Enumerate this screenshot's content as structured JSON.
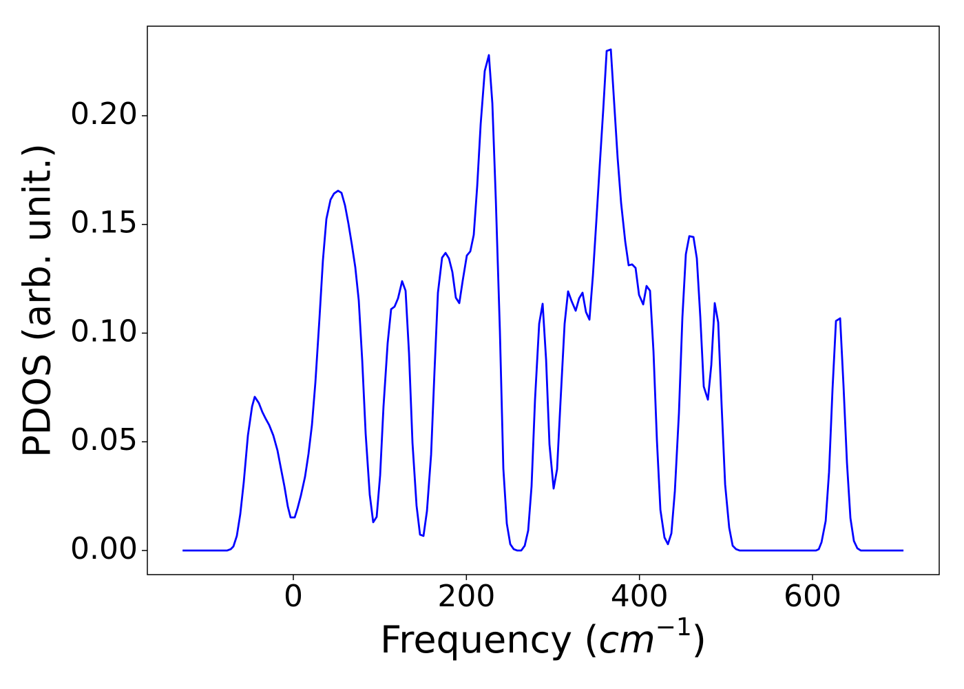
{
  "chart_data": {
    "type": "line",
    "xlabel": [
      "Frequency (",
      "cm",
      "−1",
      ")"
    ],
    "ylabel": "PDOS (arb. unit.)",
    "xlim": [
      -168.7,
      746.4
    ],
    "ylim": [
      -0.0111,
      0.2412
    ],
    "xticks": [
      0,
      200,
      400,
      600
    ],
    "yticks": [
      {
        "value": 0,
        "label": "0.00"
      },
      0.05,
      {
        "value": 0.1,
        "label": "0.10"
      },
      0.15,
      {
        "value": 0.2,
        "label": "0.20"
      }
    ],
    "grid": false,
    "series": [
      {
        "color": "#0000ff",
        "x": [
          -128,
          -76.4,
          -72.4,
          -69.2,
          -65.3,
          -61.3,
          -57.3,
          -52.5,
          -47.7,
          -44.6,
          -39.8,
          -35.8,
          -31.8,
          -27.9,
          -23.1,
          -18.3,
          -14.3,
          -10.3,
          -6.4,
          -3.2,
          1.6,
          4.8,
          8.8,
          13.5,
          17.5,
          21.5,
          25.5,
          30.2,
          34.2,
          38.2,
          43.0,
          47.0,
          51.7,
          55.7,
          59.7,
          63.7,
          67.6,
          71.6,
          75.6,
          79.6,
          83.6,
          88.3,
          92.3,
          96.3,
          100.3,
          104.2,
          109.0,
          113.0,
          117.0,
          121.0,
          125.7,
          129.7,
          133.7,
          137.7,
          142.4,
          146.4,
          150.4,
          154.4,
          159.2,
          163.1,
          167.1,
          171.9,
          175.9,
          179.8,
          183.8,
          187.8,
          191.8,
          195.8,
          200.5,
          204.5,
          208.5,
          212.5,
          216.5,
          221.2,
          226.0,
          230.0,
          234.0,
          238.7,
          242.7,
          246.7,
          250.7,
          254.7,
          258.6,
          263.4,
          267.4,
          271.4,
          275.3,
          279.3,
          284.1,
          288.1,
          292.1,
          296.0,
          300.8,
          304.8,
          308.8,
          313.5,
          317.5,
          321.5,
          326.3,
          330.3,
          334.2,
          338.2,
          342.2,
          346.2,
          350.2,
          354.1,
          358.1,
          362.1,
          366.9,
          370.8,
          374.8,
          378.8,
          383.6,
          387.5,
          391.5,
          395.5,
          399.5,
          404.3,
          408.2,
          412.2,
          416.2,
          420.2,
          424.2,
          428.9,
          432.9,
          436.9,
          440.9,
          445.6,
          449.6,
          453.6,
          457.6,
          462.4,
          466.3,
          470.3,
          474.3,
          479.1,
          483.0,
          487.0,
          491.0,
          495.0,
          499.0,
          503.7,
          507.7,
          511.7,
          515.7,
          604.0,
          607.2,
          610.4,
          615.2,
          619.1,
          623.1,
          627.1,
          631.9,
          635.8,
          639.8,
          643.8,
          647.8,
          651.8,
          655.7,
          705.1
        ],
        "values": [
          0,
          0,
          0.0006,
          0.0019,
          0.0067,
          0.0168,
          0.0314,
          0.0529,
          0.0662,
          0.0707,
          0.0678,
          0.0637,
          0.0605,
          0.0577,
          0.0529,
          0.046,
          0.0377,
          0.0295,
          0.0203,
          0.0152,
          0.0152,
          0.0193,
          0.0254,
          0.0339,
          0.0444,
          0.0577,
          0.0774,
          0.1068,
          0.1335,
          0.1525,
          0.1614,
          0.1642,
          0.1655,
          0.1645,
          0.1588,
          0.1503,
          0.1408,
          0.1303,
          0.1151,
          0.0875,
          0.0536,
          0.0257,
          0.013,
          0.0155,
          0.0346,
          0.0662,
          0.0954,
          0.111,
          0.1122,
          0.116,
          0.1239,
          0.1195,
          0.0907,
          0.0495,
          0.0206,
          0.0073,
          0.0067,
          0.0181,
          0.0441,
          0.0821,
          0.1186,
          0.1347,
          0.1369,
          0.1344,
          0.1281,
          0.1163,
          0.1138,
          0.1243,
          0.1357,
          0.1376,
          0.1452,
          0.1677,
          0.1962,
          0.2206,
          0.2279,
          0.2057,
          0.1614,
          0.1011,
          0.0377,
          0.0124,
          0.0029,
          0.0006,
          0,
          0,
          0.0022,
          0.0092,
          0.0295,
          0.0694,
          0.1043,
          0.1135,
          0.0878,
          0.0488,
          0.0285,
          0.0374,
          0.0688,
          0.1043,
          0.1192,
          0.1148,
          0.1103,
          0.116,
          0.1186,
          0.1097,
          0.1062,
          0.1265,
          0.1518,
          0.1772,
          0.2026,
          0.2298,
          0.2305,
          0.2057,
          0.1804,
          0.1598,
          0.142,
          0.1312,
          0.1316,
          0.13,
          0.1176,
          0.1132,
          0.1217,
          0.1195,
          0.0916,
          0.0504,
          0.0187,
          0.006,
          0.0029,
          0.0079,
          0.0273,
          0.0631,
          0.1071,
          0.1363,
          0.1446,
          0.1442,
          0.1344,
          0.1075,
          0.0754,
          0.0694,
          0.0853,
          0.1138,
          0.1049,
          0.0662,
          0.0304,
          0.0105,
          0.0022,
          0.0006,
          0,
          0,
          0.0006,
          0.0038,
          0.0136,
          0.0361,
          0.0742,
          0.1056,
          0.1068,
          0.0758,
          0.0403,
          0.0149,
          0.0044,
          0.001,
          0,
          0
        ]
      }
    ]
  }
}
